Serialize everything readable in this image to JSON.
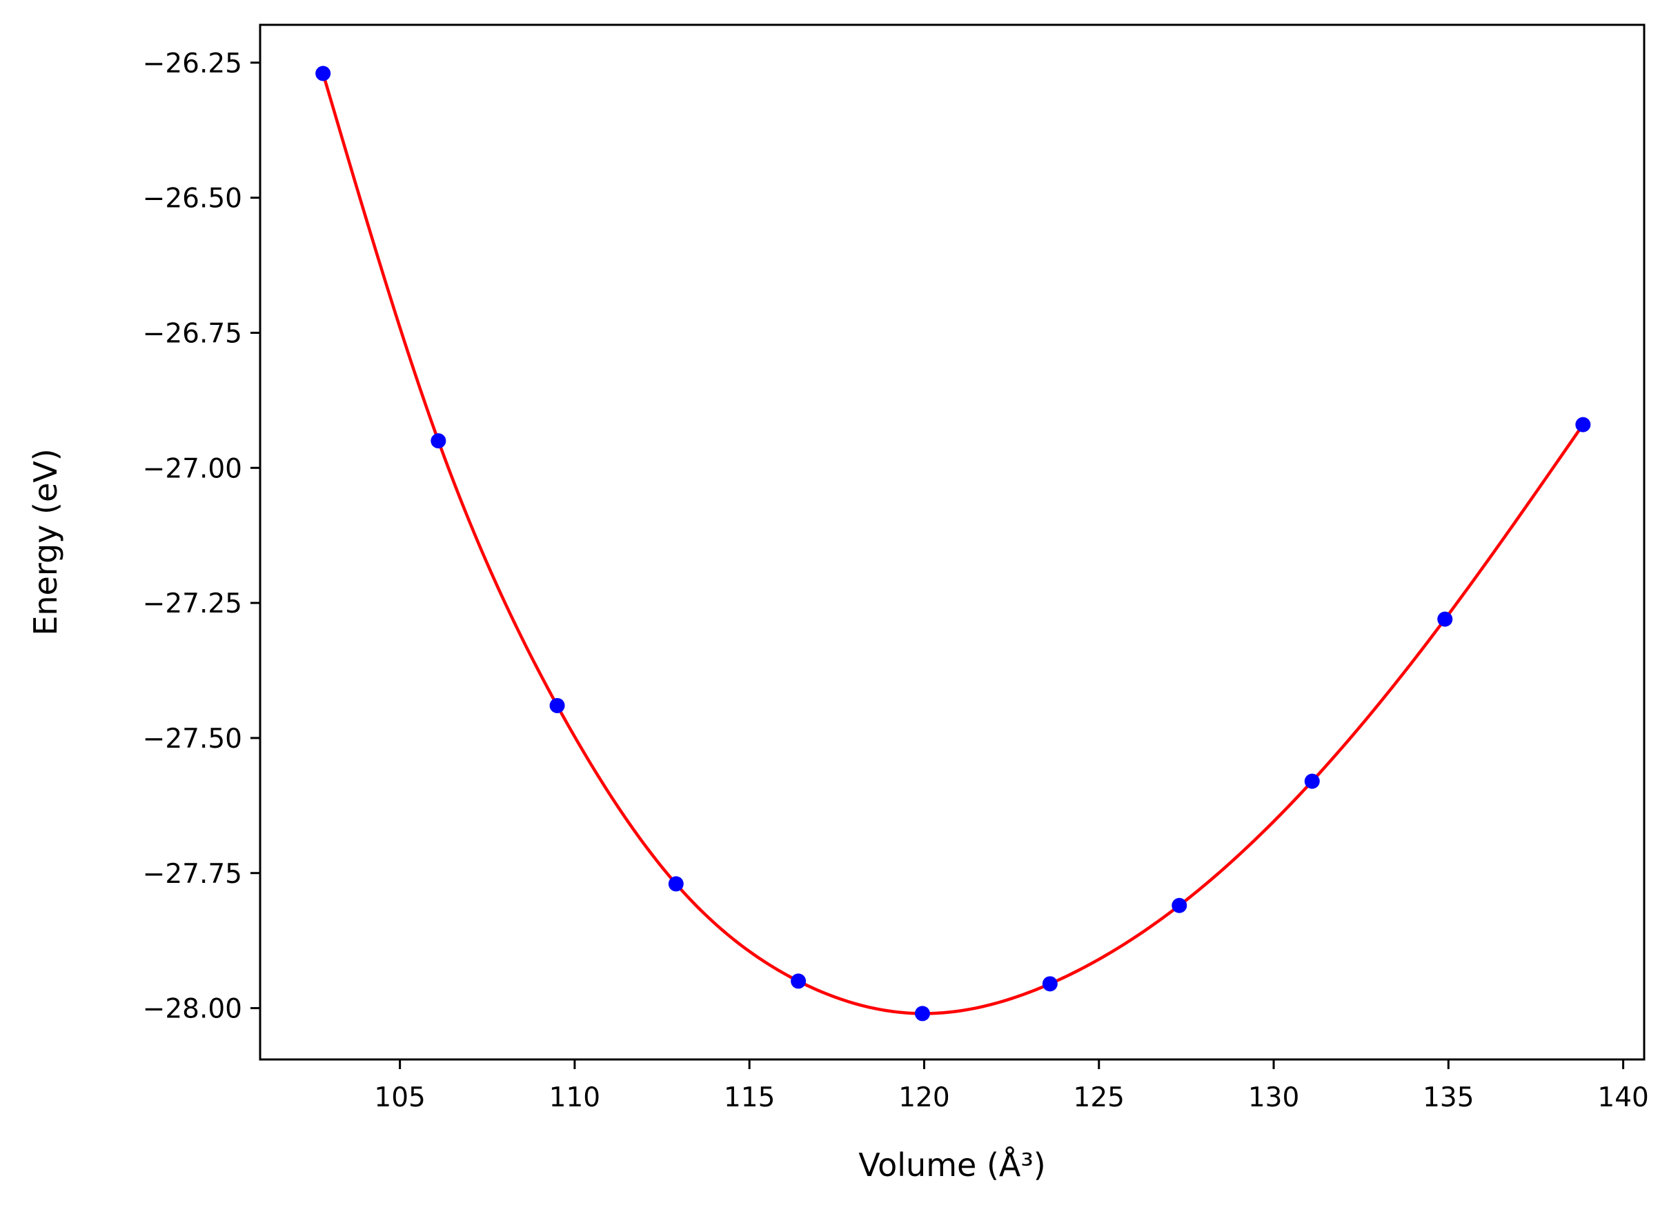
{
  "chart_data": {
    "type": "scatter",
    "title": "",
    "xlabel": "Volume (Å³)",
    "ylabel": "Energy (eV)",
    "xlim": [
      101,
      140.6
    ],
    "ylim": [
      -28.095,
      -26.18
    ],
    "xticks": [
      105,
      110,
      115,
      120,
      125,
      130,
      135,
      140
    ],
    "xtick_labels": [
      "105",
      "110",
      "115",
      "120",
      "125",
      "130",
      "135",
      "140"
    ],
    "yticks": [
      -26.25,
      -26.5,
      -26.75,
      -27.0,
      -27.25,
      -27.5,
      -27.75,
      -28.0
    ],
    "ytick_labels": [
      "−26.25",
      "−26.50",
      "−26.75",
      "−27.00",
      "−27.25",
      "−27.50",
      "−27.75",
      "−28.00"
    ],
    "grid": false,
    "legend": "none",
    "series": [
      {
        "type": "scatter",
        "color": "#0000ff",
        "marker": "circle",
        "x": [
          102.8,
          106.1,
          109.5,
          112.9,
          116.4,
          119.95,
          123.6,
          127.3,
          131.1,
          134.9,
          138.85
        ],
        "y": [
          -26.27,
          -26.95,
          -27.44,
          -27.77,
          -27.95,
          -28.01,
          -27.955,
          -27.81,
          -27.58,
          -27.28,
          -26.92
        ]
      },
      {
        "type": "line",
        "color": "#ff0000",
        "x": [
          102.8,
          106.1,
          109.5,
          112.9,
          116.4,
          119.95,
          123.6,
          127.3,
          131.1,
          134.9,
          138.85
        ],
        "y": [
          -26.27,
          -26.95,
          -27.44,
          -27.77,
          -27.95,
          -28.01,
          -27.955,
          -27.81,
          -27.58,
          -27.28,
          -26.92
        ]
      }
    ]
  }
}
